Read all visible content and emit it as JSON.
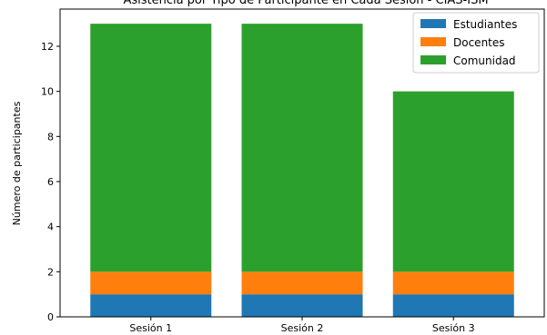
{
  "chart_data": {
    "type": "bar",
    "stacked": true,
    "title": "Asistencia por Tipo de Participante en Cada Sesión - CIAS-ISM",
    "xlabel": "",
    "ylabel": "Número de participantes",
    "categories": [
      "Sesión 1",
      "Sesión 2",
      "Sesión 3"
    ],
    "series": [
      {
        "name": "Estudiantes",
        "color": "#1f77b4",
        "values": [
          1,
          1,
          1
        ]
      },
      {
        "name": "Docentes",
        "color": "#ff7f0e",
        "values": [
          1,
          1,
          1
        ]
      },
      {
        "name": "Comunidad",
        "color": "#2ca02c",
        "values": [
          11,
          11,
          8
        ]
      }
    ],
    "ylim": [
      0,
      13.65
    ],
    "yticks": [
      0,
      2,
      4,
      6,
      8,
      10,
      12
    ],
    "grid": false,
    "legend_position": "top-right"
  }
}
